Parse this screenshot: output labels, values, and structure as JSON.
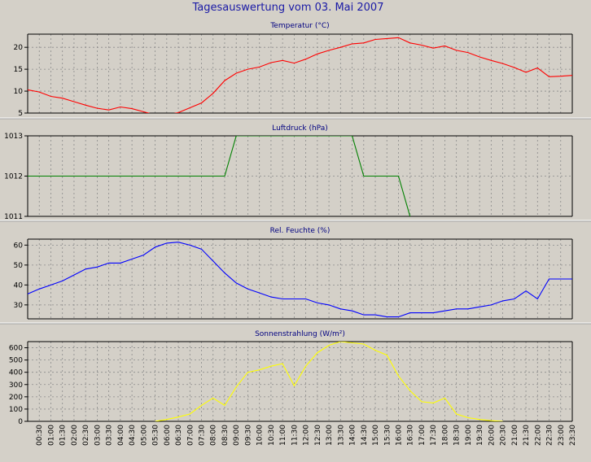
{
  "title": "Tagesauswertung vom 03. Mai 2007",
  "colors": {
    "background": "#d4d0c8",
    "plot_background": "#d4d0c8",
    "grid": "#8a8a8a",
    "axis": "#000000",
    "title": "#1a1aa6",
    "separator": "#ffffff"
  },
  "x_ticks": [
    "00:30",
    "01:00",
    "01:30",
    "02:00",
    "02:30",
    "03:00",
    "03:30",
    "04:00",
    "04:30",
    "05:00",
    "05:30",
    "06:00",
    "06:30",
    "07:00",
    "07:30",
    "08:00",
    "08:30",
    "09:00",
    "09:30",
    "10:00",
    "10:30",
    "11:00",
    "11:30",
    "12:00",
    "12:30",
    "13:00",
    "13:30",
    "14:00",
    "14:30",
    "15:00",
    "15:30",
    "16:00",
    "16:30",
    "17:00",
    "17:30",
    "18:00",
    "18:30",
    "19:00",
    "19:30",
    "20:00",
    "20:30",
    "21:00",
    "21:30",
    "22:00",
    "22:30",
    "23:00",
    "23:30"
  ],
  "chart_data": [
    {
      "type": "line",
      "title": "Temperatur (°C)",
      "color": "#ff0000",
      "ylim": [
        5,
        23
      ],
      "yticks": [
        5,
        10,
        15,
        20
      ],
      "x": [
        0,
        1,
        2,
        3,
        4,
        5,
        6,
        7,
        8,
        9,
        10,
        11,
        12,
        13,
        14,
        15,
        16,
        17,
        18,
        19,
        20,
        21,
        22,
        23,
        24,
        25,
        26,
        27,
        28,
        29,
        30,
        31,
        32,
        33,
        34,
        35,
        36,
        37,
        38,
        39,
        40,
        41,
        42,
        43,
        44,
        45,
        46,
        47
      ],
      "values": [
        10.3,
        9.8,
        8.8,
        8.4,
        7.6,
        6.8,
        6.1,
        5.7,
        6.4,
        6.0,
        5.3,
        4.6,
        4.6,
        5.1,
        6.2,
        7.3,
        9.5,
        12.4,
        14.1,
        15.0,
        15.5,
        16.5,
        17.0,
        16.4,
        17.3,
        18.5,
        19.3,
        20.0,
        20.8,
        21.0,
        21.8,
        22.0,
        22.2,
        21.0,
        20.5,
        19.8,
        20.3,
        19.3,
        18.8,
        17.8,
        17.0,
        16.3,
        15.4,
        14.3,
        15.3,
        13.3,
        13.4,
        13.6
      ],
      "grid": true
    },
    {
      "type": "line",
      "title": "Luftdruck (hPa)",
      "color": "#008000",
      "ylim": [
        1011,
        1013
      ],
      "yticks": [
        1011,
        1012,
        1013
      ],
      "x": [
        0,
        17,
        18,
        28,
        29,
        32,
        33
      ],
      "values": [
        1012,
        1012,
        1013,
        1013,
        1012,
        1012,
        1011
      ],
      "grid": true
    },
    {
      "type": "line",
      "title": "Rel. Feuchte (%)",
      "color": "#0000ff",
      "ylim": [
        23,
        63
      ],
      "yticks": [
        30,
        40,
        50,
        60
      ],
      "x": [
        0,
        1,
        2,
        3,
        4,
        5,
        6,
        7,
        8,
        9,
        10,
        11,
        12,
        13,
        14,
        15,
        16,
        17,
        18,
        19,
        20,
        21,
        22,
        23,
        24,
        25,
        26,
        27,
        28,
        29,
        30,
        31,
        32,
        33,
        34,
        35,
        36,
        37,
        38,
        39,
        40,
        41,
        42,
        43,
        44,
        45,
        46,
        47
      ],
      "values": [
        35.5,
        38,
        40,
        42,
        45,
        48,
        49,
        51,
        51,
        53,
        55,
        59,
        61,
        61.5,
        60,
        58,
        52,
        46,
        41,
        38,
        36,
        34,
        33,
        33,
        33,
        31,
        30,
        28,
        27,
        25,
        25,
        24,
        24,
        26,
        26,
        26,
        27,
        28,
        28,
        29,
        30,
        32,
        33,
        37,
        33,
        43,
        43,
        43
      ],
      "grid": true
    },
    {
      "type": "line",
      "title": "Sonnenstrahlung (W/m²)",
      "color": "#ffff00",
      "ylim": [
        0,
        650
      ],
      "yticks": [
        0,
        100,
        200,
        300,
        400,
        500,
        600
      ],
      "x": [
        11,
        12,
        13,
        14,
        15,
        16,
        17,
        18,
        19,
        20,
        21,
        22,
        23,
        24,
        25,
        26,
        27,
        28,
        29,
        30,
        31,
        32,
        33,
        34,
        35,
        36,
        37,
        38,
        39,
        40,
        41
      ],
      "values": [
        0,
        15,
        35,
        60,
        130,
        190,
        130,
        280,
        400,
        420,
        450,
        470,
        290,
        450,
        560,
        620,
        650,
        640,
        630,
        580,
        540,
        370,
        250,
        160,
        150,
        190,
        60,
        30,
        15,
        5,
        0
      ],
      "grid": true
    }
  ]
}
